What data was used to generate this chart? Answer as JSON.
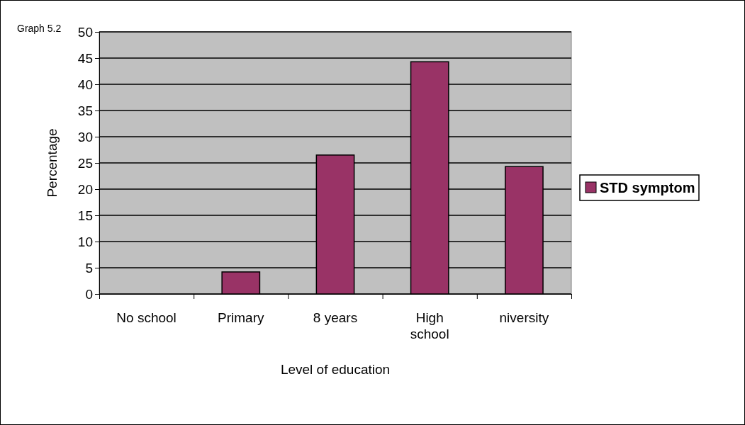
{
  "chart_data": {
    "type": "bar",
    "title": "Graph 5.2",
    "xlabel": "Level of education",
    "ylabel": "Percentage",
    "categories": [
      "No school",
      "Primary",
      "8 years",
      "High school",
      "niversity"
    ],
    "series": [
      {
        "name": "STD symptom",
        "color": "#993366",
        "values": [
          0,
          4.2,
          26.5,
          44.3,
          24.3
        ]
      }
    ],
    "ylim": [
      0,
      50
    ],
    "yticks": [
      0,
      5,
      10,
      15,
      20,
      25,
      30,
      35,
      40,
      45,
      50
    ],
    "grid": "y",
    "legend": "right"
  }
}
